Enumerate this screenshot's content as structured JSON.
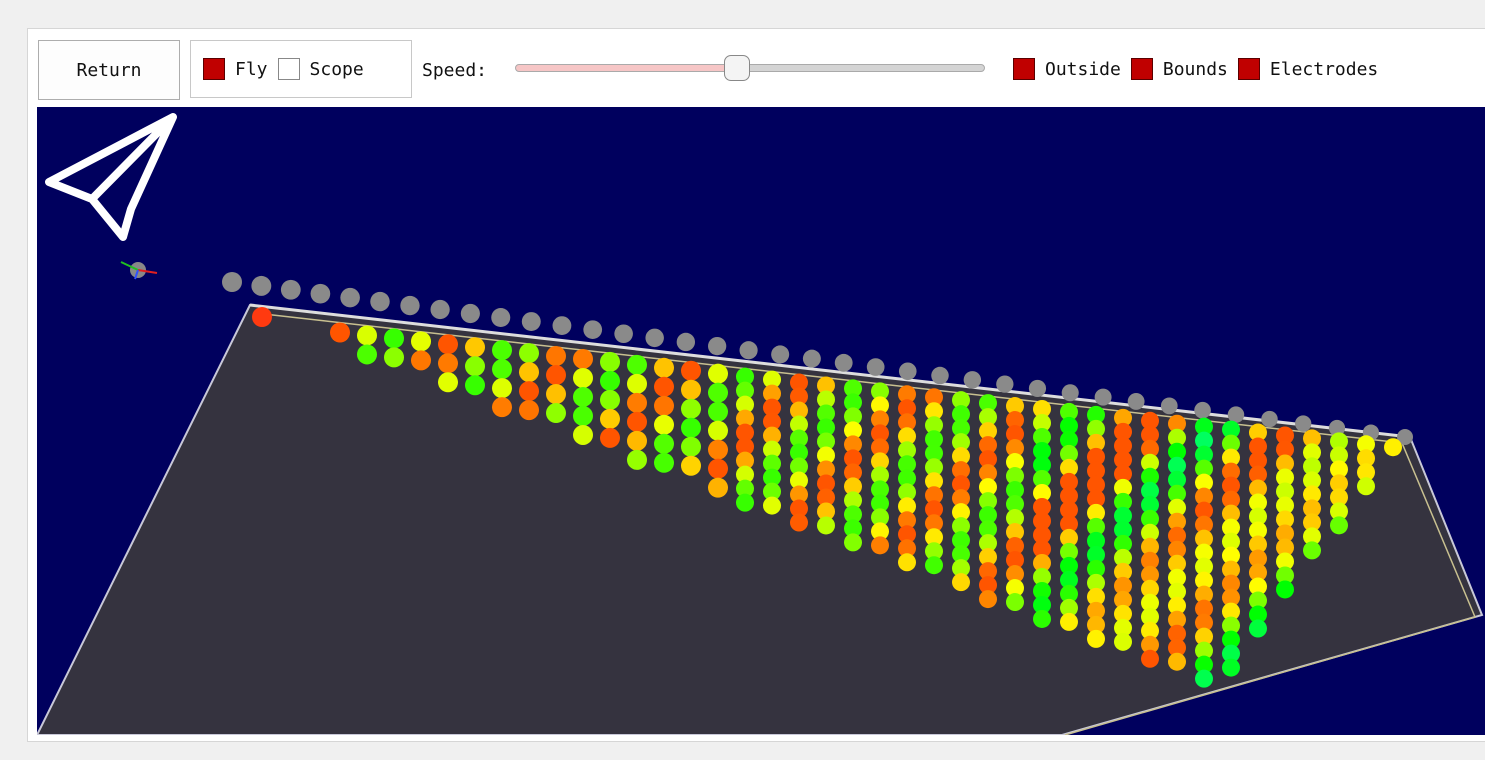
{
  "toolbar": {
    "return_button": "Return",
    "view_mode": [
      {
        "label": "Fly",
        "checked": true
      },
      {
        "label": "Scope",
        "checked": false
      }
    ],
    "speed_label": "Speed:",
    "toggles": [
      {
        "label": "Outside",
        "checked": true
      },
      {
        "label": "Bounds",
        "checked": true
      },
      {
        "label": "Electrodes",
        "checked": true
      }
    ]
  }
}
